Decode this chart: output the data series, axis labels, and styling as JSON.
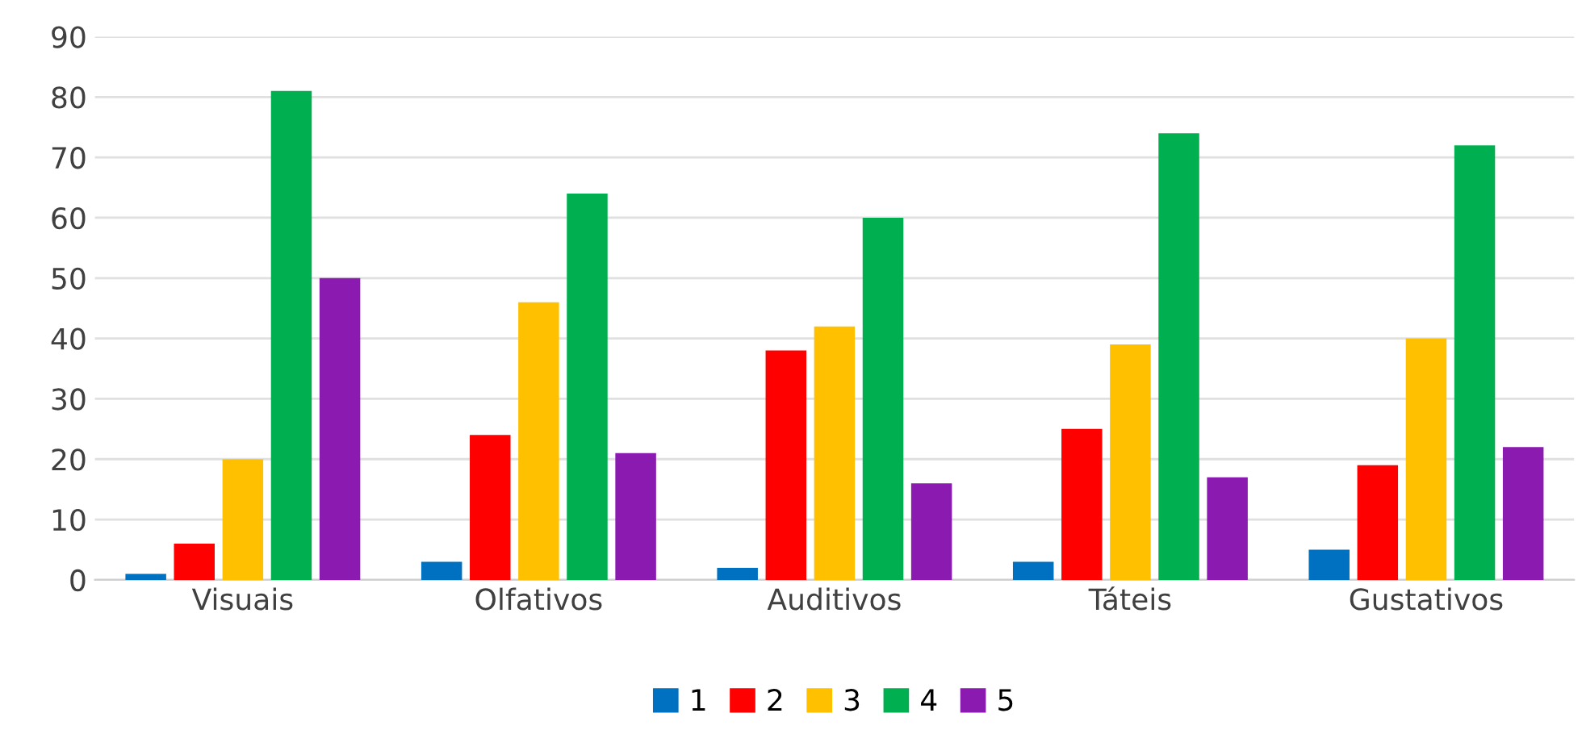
{
  "chart_data": {
    "type": "bar",
    "categories": [
      "Visuais",
      "Olfativos",
      "Auditivos",
      "Táteis",
      "Gustativos"
    ],
    "series": [
      {
        "name": "1",
        "color": "#0070c0",
        "values": [
          1,
          3,
          2,
          3,
          5
        ]
      },
      {
        "name": "2",
        "color": "#ff0000",
        "values": [
          6,
          24,
          38,
          25,
          19
        ]
      },
      {
        "name": "3",
        "color": "#ffc000",
        "values": [
          20,
          46,
          42,
          39,
          40
        ]
      },
      {
        "name": "4",
        "color": "#00b050",
        "values": [
          81,
          64,
          60,
          74,
          72
        ]
      },
      {
        "name": "5",
        "color": "#8a1ab0",
        "values": [
          50,
          21,
          16,
          17,
          22
        ]
      }
    ],
    "ylim": [
      0,
      90
    ],
    "yticks": [
      0,
      10,
      20,
      30,
      40,
      50,
      60,
      70,
      80,
      90
    ],
    "grid": "y",
    "legend": "bottom"
  }
}
